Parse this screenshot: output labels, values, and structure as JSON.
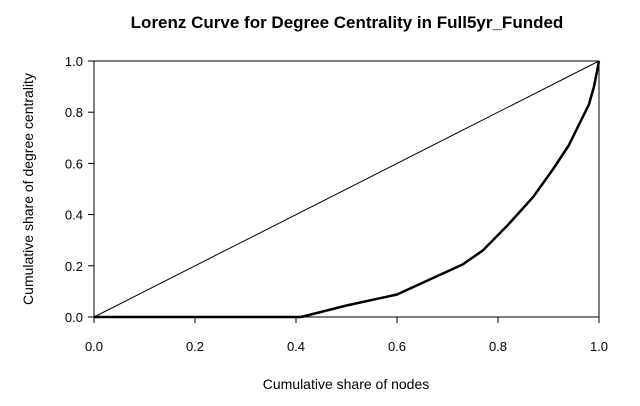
{
  "chart_data": {
    "type": "line",
    "title": "Lorenz Curve for Degree Centrality in Full5yr_Funded",
    "xlabel": "Cumulative share of nodes",
    "ylabel": "Cumulative share of degree centrality",
    "xlim": [
      0,
      1
    ],
    "ylim": [
      0,
      1
    ],
    "xticks": [
      "0.0",
      "0.2",
      "0.4",
      "0.6",
      "0.8",
      "1.0"
    ],
    "yticks": [
      "0.0",
      "0.2",
      "0.4",
      "0.6",
      "0.8",
      "1.0"
    ],
    "grid": false,
    "series": [
      {
        "role": "equality-line",
        "x": [
          0,
          1
        ],
        "y": [
          0,
          1
        ]
      },
      {
        "role": "lorenz-curve",
        "x": [
          0,
          0.41,
          0.5,
          0.6,
          0.68,
          0.73,
          0.77,
          0.82,
          0.87,
          0.91,
          0.94,
          0.96,
          0.98,
          0.99,
          1.0
        ],
        "y": [
          0,
          0,
          0.045,
          0.088,
          0.16,
          0.205,
          0.26,
          0.36,
          0.47,
          0.58,
          0.67,
          0.75,
          0.83,
          0.9,
          1.0
        ]
      }
    ]
  },
  "colors": {
    "axis": "#000000",
    "curve": "#000000",
    "equality": "#000000"
  }
}
